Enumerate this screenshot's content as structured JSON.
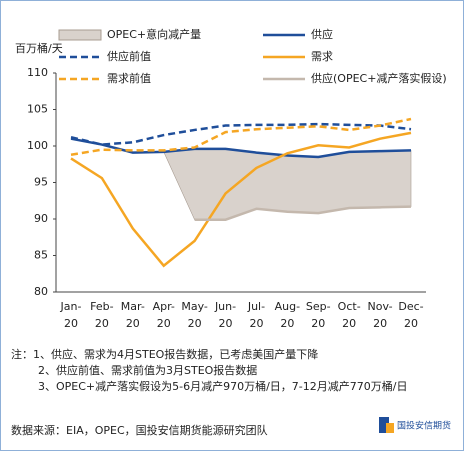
{
  "chart_data": {
    "type": "line",
    "y_unit": "百万桶/天",
    "categories": [
      "Jan-20",
      "Feb-20",
      "Mar-20",
      "Apr-20",
      "May-20",
      "Jun-20",
      "Jul-20",
      "Aug-20",
      "Sep-20",
      "Oct-20",
      "Nov-20",
      "Dec-20"
    ],
    "ylim": [
      80,
      110
    ],
    "yticks": [
      80,
      85,
      90,
      95,
      100,
      105,
      110
    ],
    "grid": false,
    "series": [
      {
        "name": "OPEC+意向减产量",
        "style": "area",
        "base_series": 1,
        "color": "#d9d2cc",
        "values": [
          null,
          null,
          null,
          0,
          9.7,
          9.7,
          7.7,
          7.7,
          7.7,
          7.7,
          7.7,
          7.7
        ]
      },
      {
        "name": "供应",
        "style": "line",
        "dashed": false,
        "color": "#1f4e9a",
        "values": [
          101,
          100.2,
          99.1,
          99.2,
          99.6,
          99.6,
          99.1,
          98.7,
          98.5,
          99.2,
          99.3,
          99.4
        ]
      },
      {
        "name": "供应前值",
        "style": "line",
        "dashed": true,
        "color": "#1f4e9a",
        "values": [
          101.2,
          100.2,
          100.5,
          101.5,
          102.2,
          102.8,
          102.9,
          102.9,
          103,
          102.9,
          102.8,
          102.3
        ]
      },
      {
        "name": "需求",
        "style": "line",
        "dashed": false,
        "color": "#f5a623",
        "values": [
          98.3,
          95.6,
          88.7,
          83.6,
          87,
          93.5,
          97,
          99,
          100.1,
          99.8,
          101,
          101.8
        ]
      },
      {
        "name": "需求前值",
        "style": "line",
        "dashed": true,
        "color": "#f5a623",
        "values": [
          98.8,
          99.5,
          99.4,
          99.4,
          99.8,
          101.9,
          102.3,
          102.5,
          102.7,
          102.2,
          102.8,
          103.7
        ]
      },
      {
        "name": "供应(OPEC+减产落实假设)",
        "style": "line",
        "dashed": false,
        "color": "#c4b8ad",
        "values": [
          null,
          null,
          null,
          null,
          89.9,
          89.9,
          91.4,
          91,
          90.8,
          91.5,
          91.6,
          91.7
        ]
      }
    ]
  },
  "notes": [
    "注：1、供应、需求为4月STEO报告数据，已考虑美国产量下降",
    "2、供应前值、需求前值为3月STEO报告数据",
    "3、OPEC+减产落实假设为5-6月减产970万桶/日，7-12月减产770万桶/日"
  ],
  "source": "数据来源：EIA，OPEC，国投安信期货能源研究团队",
  "logo_text": "国投安信期货"
}
